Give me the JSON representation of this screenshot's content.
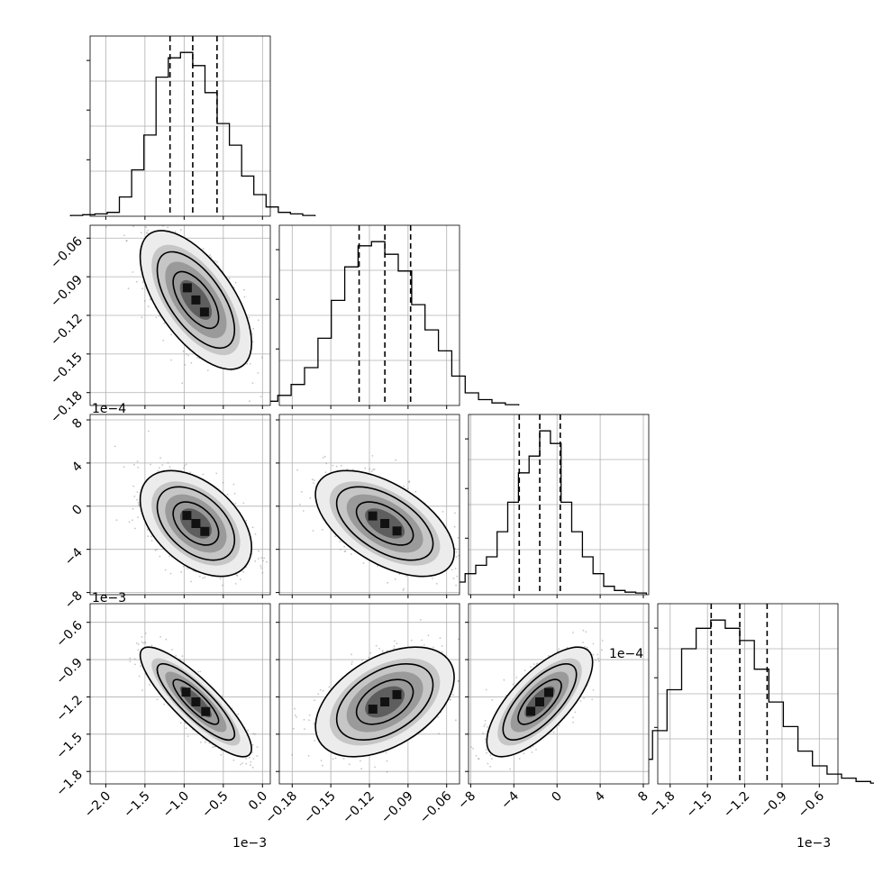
{
  "chart_data": {
    "type": "corner",
    "grid": true,
    "parameters": [
      {
        "range": [
          -2.2,
          0.1
        ],
        "ticks": [
          -2.0,
          -1.5,
          -1.0,
          -0.5,
          0.0
        ],
        "tick_labels": [
          "−2.0",
          "−1.5",
          "−1.0",
          "−0.5",
          "0.0"
        ],
        "offset_label": "1e−3",
        "quantiles": [
          -1.18,
          -0.89,
          -0.58
        ]
      },
      {
        "range": [
          -0.19,
          -0.05
        ],
        "ticks": [
          -0.18,
          -0.15,
          -0.12,
          -0.09,
          -0.06
        ],
        "tick_labels": [
          "−0.18",
          "−0.15",
          "−0.12",
          "−0.09",
          "−0.06"
        ],
        "offset_label": "",
        "quantiles": [
          -0.128,
          -0.108,
          -0.088
        ]
      },
      {
        "range": [
          -8.2,
          8.5
        ],
        "ticks": [
          -8,
          -4,
          0,
          4,
          8
        ],
        "tick_labels": [
          "−8",
          "−4",
          "0",
          "4",
          "8"
        ],
        "offset_label": "1e−4",
        "quantiles": [
          -3.5,
          -1.6,
          0.3
        ]
      },
      {
        "range": [
          -1.9,
          -0.45
        ],
        "ticks": [
          -1.8,
          -1.5,
          -1.2,
          -0.9,
          -0.6
        ],
        "tick_labels": [
          "−1.8",
          "−1.5",
          "−1.2",
          "−0.9",
          "−0.6"
        ],
        "offset_label": "1e−3",
        "quantiles": [
          -1.47,
          -1.24,
          -1.02
        ]
      }
    ],
    "histograms": [
      {
        "edges_count": 20,
        "counts": [
          1,
          2,
          3,
          5,
          25,
          60,
          105,
          180,
          205,
          212,
          195,
          160,
          120,
          92,
          52,
          28,
          12,
          5,
          3,
          1
        ]
      },
      {
        "edges_count": 20,
        "counts": [
          2,
          5,
          12,
          25,
          45,
          80,
          125,
          165,
          190,
          195,
          180,
          160,
          120,
          90,
          65,
          35,
          15,
          7,
          3,
          1
        ]
      },
      {
        "edges_count": 20,
        "counts": [
          3,
          8,
          15,
          25,
          35,
          45,
          75,
          110,
          145,
          165,
          195,
          180,
          110,
          75,
          45,
          25,
          10,
          5,
          3,
          2
        ]
      },
      {
        "edges_count": 20,
        "counts": [
          2,
          5,
          12,
          30,
          65,
          115,
          165,
          190,
          200,
          190,
          175,
          140,
          100,
          70,
          40,
          22,
          12,
          7,
          3,
          1
        ]
      }
    ],
    "pair_panels": [
      {
        "row": 1,
        "col": 0,
        "mean": [
          -0.85,
          -0.108
        ],
        "sd": [
          0.29,
          0.022
        ],
        "rho": -0.62
      },
      {
        "row": 2,
        "col": 0,
        "mean": [
          -0.85,
          -1.6
        ],
        "sd": [
          0.29,
          2.0
        ],
        "rho": -0.45
      },
      {
        "row": 2,
        "col": 1,
        "mean": [
          -0.108,
          -1.6
        ],
        "sd": [
          0.022,
          2.0
        ],
        "rho": -0.55
      },
      {
        "row": 3,
        "col": 0,
        "mean": [
          -0.85,
          -1.24
        ],
        "sd": [
          0.29,
          0.18
        ],
        "rho": -0.85
      },
      {
        "row": 3,
        "col": 1,
        "mean": [
          -0.108,
          -1.24
        ],
        "sd": [
          0.022,
          0.18
        ],
        "rho": 0.45
      },
      {
        "row": 3,
        "col": 2,
        "mean": [
          -1.6,
          -1.24
        ],
        "sd": [
          2.0,
          0.18
        ],
        "rho": 0.72
      }
    ]
  }
}
